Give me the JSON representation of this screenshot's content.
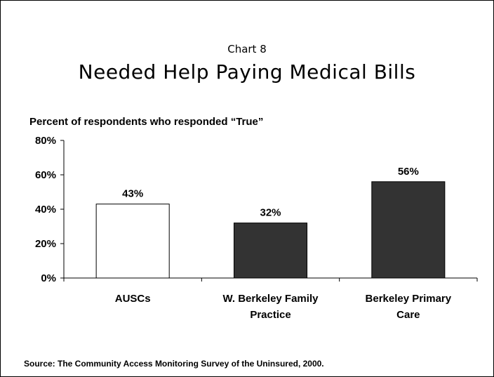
{
  "chart_data": {
    "type": "bar",
    "supertitle": "Chart 8",
    "title": "Needed Help Paying Medical Bills",
    "subtitle": "Percent of respondents who responded “True”",
    "categories": [
      [
        "AUSCs"
      ],
      [
        "W. Berkeley Family",
        "Practice"
      ],
      [
        "Berkeley Primary",
        "Care"
      ]
    ],
    "values": [
      43,
      32,
      56
    ],
    "data_labels": [
      "43%",
      "32%",
      "56%"
    ],
    "bar_colors": [
      "#ffffff",
      "#333333",
      "#333333"
    ],
    "ylim": [
      0,
      80
    ],
    "yticks": [
      0,
      20,
      40,
      60,
      80
    ],
    "ytick_labels": [
      "0%",
      "20%",
      "40%",
      "60%",
      "80%"
    ],
    "grid": false,
    "source": "Source: The Community Access Monitoring Survey of the Uninsured,  2000."
  }
}
